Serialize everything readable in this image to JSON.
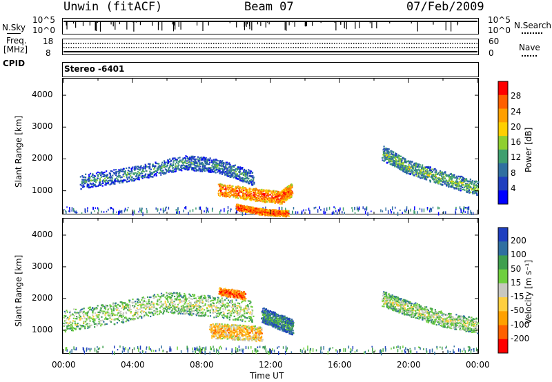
{
  "header": {
    "station": "Unwin (fitACF)",
    "beam": "Beam 07",
    "date": "07/Feb/2009"
  },
  "top_panels": {
    "nsky_label": "N.Sky",
    "nsky_ticks": [
      "10^5",
      "10^0"
    ],
    "nsearch_label": "N.Search",
    "nsearch_ticks": [
      "10^5",
      "10^0"
    ],
    "freq_label": "Freq.",
    "freq_unit": "[MHz]",
    "freq_ticks": [
      "18",
      "8"
    ],
    "nave_label": "Nave",
    "nave_ticks": [
      "60",
      "0"
    ],
    "cpid_label": "CPID",
    "cpid_value": "Stereo -6401"
  },
  "colors": {
    "power": [
      "#0000ff",
      "#1f3fbf",
      "#2f6fa0",
      "#3f9f6f",
      "#8fcf2f",
      "#ffcf00",
      "#ff9f00",
      "#ff5f00",
      "#ff0000"
    ],
    "velocity": [
      "#1f3fbf",
      "#2f6fa0",
      "#3f9f4f",
      "#6fcf3f",
      "#c8c8c0",
      "#ffcf3f",
      "#ffa000",
      "#ff6000",
      "#ff0000"
    ]
  },
  "chart_data": [
    {
      "type": "heatmap",
      "name": "power",
      "ylabel": "Slant Range [km]",
      "yticks": [
        "1000",
        "2000",
        "3000",
        "4000"
      ],
      "ylim": [
        300,
        4500
      ],
      "xlim": [
        0,
        24
      ],
      "colorbar_label": "Power [dB]",
      "colorbar_ticks": [
        "4",
        "8",
        "12",
        "16",
        "20",
        "24",
        "28"
      ],
      "colorbar_range": [
        0,
        32
      ],
      "bands": [
        {
          "x": [
            1,
            4,
            7,
            9,
            11
          ],
          "y": [
            1300,
            1550,
            1900,
            1800,
            1400
          ],
          "width": 280,
          "level": 0.35
        },
        {
          "x": [
            9,
            11,
            12.6,
            13.2
          ],
          "y": [
            1050,
            900,
            800,
            1050
          ],
          "width": 250,
          "level": 0.85
        },
        {
          "x": [
            10,
            11.5,
            13
          ],
          "y": [
            500,
            350,
            300
          ],
          "width": 120,
          "level": 0.9
        },
        {
          "x": [
            18.5,
            20,
            22,
            24
          ],
          "y": [
            2200,
            1750,
            1400,
            1100
          ],
          "width": 280,
          "level": 0.45
        }
      ]
    },
    {
      "type": "heatmap",
      "name": "velocity",
      "ylabel": "Slant Range [km]",
      "yticks": [
        "1000",
        "2000",
        "3000",
        "4000"
      ],
      "ylim": [
        300,
        4500
      ],
      "xlim": [
        0,
        24
      ],
      "colorbar_label": "Velocity [m s⁻¹]",
      "colorbar_ticks": [
        "200",
        "100",
        "50",
        "15",
        "-15",
        "-50",
        "-100",
        "-200"
      ],
      "colorbar_range": [
        -250,
        250
      ],
      "bands": [
        {
          "x": [
            0,
            3,
            6,
            8,
            11
          ],
          "y": [
            1300,
            1550,
            1900,
            1800,
            1600
          ],
          "width": 420,
          "level": 0.5
        },
        {
          "x": [
            8.5,
            10,
            11.5
          ],
          "y": [
            1000,
            950,
            900
          ],
          "width": 300,
          "level": 0.72
        },
        {
          "x": [
            11.5,
            12.4,
            13.3
          ],
          "y": [
            1500,
            1300,
            1100
          ],
          "width": 300,
          "level": 0.3
        },
        {
          "x": [
            9,
            10.5
          ],
          "y": [
            2250,
            2100
          ],
          "width": 160,
          "level": 0.9
        },
        {
          "x": [
            18.5,
            20,
            22,
            24
          ],
          "y": [
            2000,
            1700,
            1350,
            1150
          ],
          "width": 300,
          "level": 0.5
        }
      ]
    }
  ],
  "xaxis": {
    "ticks": [
      "00:00",
      "04:00",
      "08:00",
      "12:00",
      "16:00",
      "20:00",
      "00:00"
    ],
    "label": "Time UT"
  }
}
